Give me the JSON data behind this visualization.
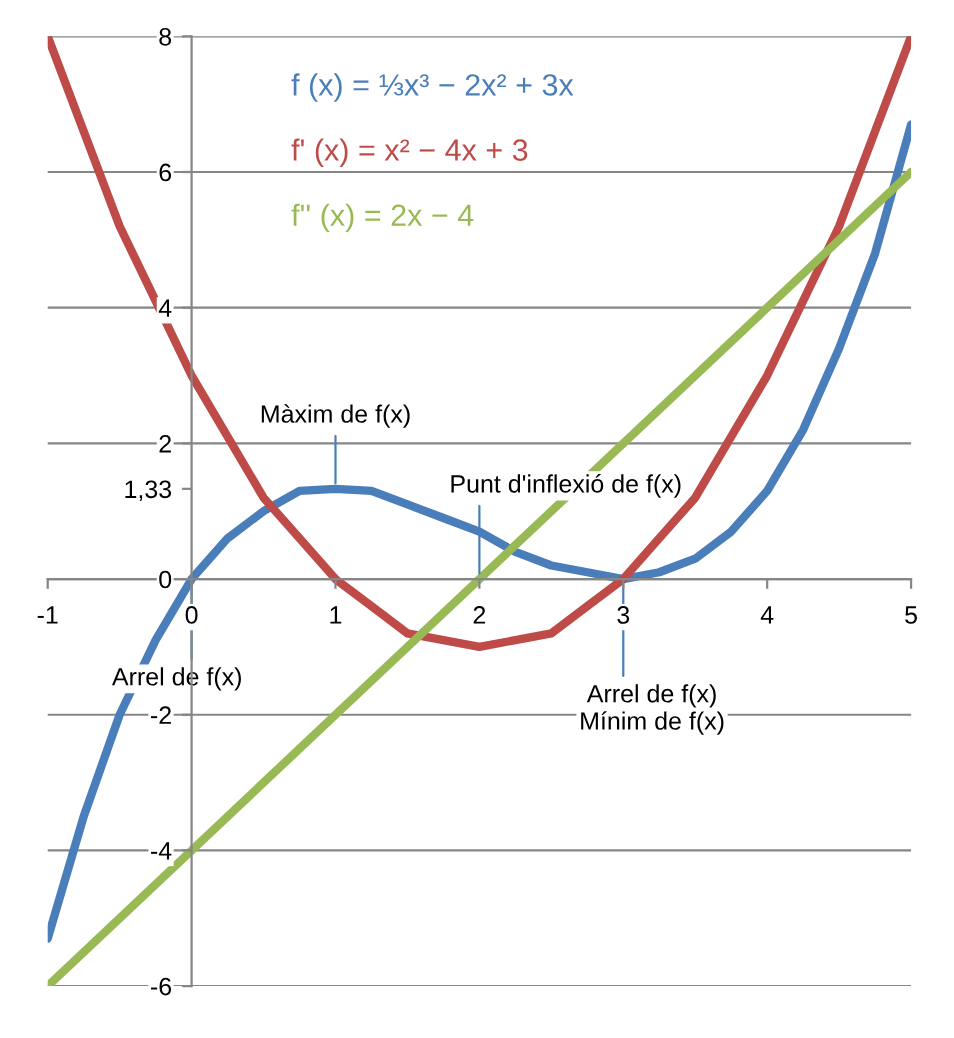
{
  "chart_data": {
    "type": "line",
    "x": [
      -1,
      -0.75,
      -0.5,
      -0.25,
      0,
      0.25,
      0.5,
      0.75,
      1,
      1.25,
      1.5,
      1.75,
      2,
      2.25,
      2.5,
      2.75,
      3,
      3.25,
      3.5,
      3.75,
      4,
      4.25,
      4.5,
      4.75,
      5
    ],
    "series": [
      {
        "name": "f (x) = ⅓x³ − 2x² + 3x",
        "color": "#4a7ebb",
        "values": [
          -5.3,
          -3.5,
          -2.0,
          -0.9,
          0,
          0.6,
          1.0,
          1.3,
          1.33,
          1.3,
          1.1,
          0.9,
          0.7,
          0.4,
          0.2,
          0.1,
          0,
          0.1,
          0.3,
          0.7,
          1.3,
          2.2,
          3.4,
          4.8,
          6.7
        ]
      },
      {
        "name": "f' (x) = x² − 4x + 3",
        "color": "#be4b48",
        "values": [
          8,
          6.6,
          5.2,
          4.1,
          3,
          2.1,
          1.2,
          0.6,
          0,
          -0.4,
          -0.8,
          -0.9,
          -1,
          -0.9,
          -0.8,
          -0.4,
          0,
          0.6,
          1.2,
          2.1,
          3,
          4.1,
          5.2,
          6.6,
          8
        ]
      },
      {
        "name": "f'' (x) = 2x − 4",
        "color": "#98b954",
        "x": [
          -1,
          5
        ],
        "values": [
          -6,
          6
        ]
      }
    ],
    "xlim": [
      -1,
      5
    ],
    "ylim": [
      -6,
      8
    ],
    "xticks": [
      -1,
      0,
      1,
      2,
      3,
      4,
      5
    ],
    "yticks": [
      -6,
      -4,
      -2,
      0,
      2,
      4,
      6,
      8,
      {
        "value": 1.33,
        "label": "1,33"
      }
    ],
    "grid": "y",
    "legend": "top left",
    "marker": "none",
    "line_style": "solid",
    "annotations": [
      {
        "text": "Màxim de f(x)",
        "x": 1,
        "y": 1.33
      },
      {
        "text": "Punt d'inflexió de f(x)",
        "x": 2,
        "y": 0
      },
      {
        "text": "Arrel de f(x)",
        "x": 0,
        "y": 0
      },
      {
        "text": "Arrel de f(x)\nMínim de f(x)",
        "x": 3,
        "y": 0
      }
    ]
  }
}
